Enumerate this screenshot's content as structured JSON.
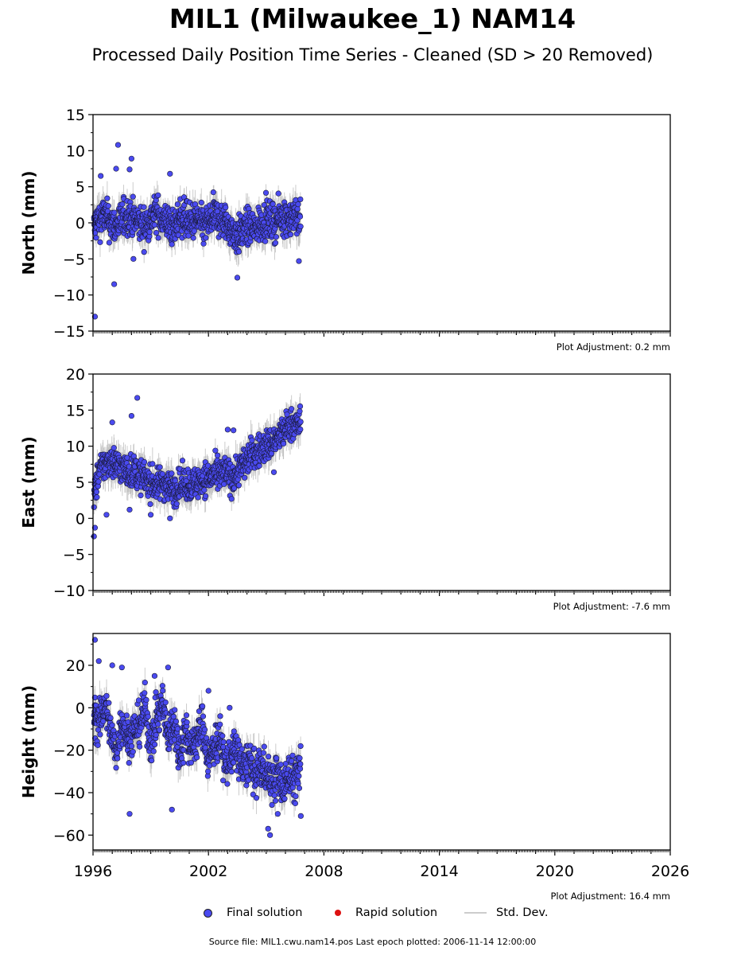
{
  "title": "MIL1 (Milwaukee_1) NAM14",
  "subtitle": "Processed Daily Position Time Series - Cleaned (SD > 20 Removed)",
  "legend": {
    "final_solution": "Final solution",
    "rapid_solution": "Rapid solution",
    "std_dev": "Std. Dev."
  },
  "source_line": "Source file: MIL1.cwu.nam14.pos  Last epoch plotted: 2006-11-14 12:00:00",
  "colors": {
    "final_solution": "#4a4af0",
    "rapid_solution": "#dd1111",
    "std_dev": "#bbbbbb"
  },
  "chart_data": [
    {
      "type": "scatter",
      "ylabel": "North (mm)",
      "ylim": [
        -15,
        15
      ],
      "yticks": [
        -15,
        -10,
        -5,
        0,
        5,
        10,
        15
      ],
      "xlim": [
        1996,
        2026
      ],
      "xticks": [
        1996,
        2002,
        2008,
        2014,
        2020,
        2026
      ],
      "adjustment": "Plot Adjustment: 0.2 mm",
      "series": [
        {
          "name": "Final solution",
          "x": [
            1996.05,
            1996.3,
            1996.6,
            1996.9,
            1997.2,
            1997.5,
            1997.8,
            1998.1,
            1998.4,
            1998.7,
            1999.0,
            1999.3,
            1999.6,
            1999.9,
            2000.2,
            2000.5,
            2000.8,
            2001.1,
            2001.4,
            2001.7,
            2002.0,
            2002.3,
            2002.6,
            2002.9,
            2003.2,
            2003.5,
            2003.8,
            2004.1,
            2004.4,
            2004.7,
            2005.0,
            2005.3,
            2005.6,
            2005.9,
            2006.2,
            2006.5,
            2006.8
          ],
          "y": [
            -0.5,
            0.5,
            1,
            0,
            -0.5,
            0.5,
            1,
            0.5,
            0,
            -0.5,
            0.5,
            1.5,
            0.5,
            0,
            -1,
            1,
            0.5,
            0,
            0.5,
            -0.5,
            0,
            1,
            0.5,
            0,
            -1,
            -2,
            -1,
            -0.5,
            -1,
            0,
            0.5,
            0,
            0.5,
            1,
            0.5,
            1,
            0.5
          ],
          "outliers_x": [
            1996.1,
            1996.4,
            1997.1,
            1997.2,
            1997.3,
            1997.9,
            1998.0,
            1998.1,
            2000.0,
            2003.5,
            2006.7
          ],
          "outliers_y": [
            -13,
            6.5,
            -8.5,
            7.5,
            10.8,
            7.4,
            8.9,
            -5,
            6.8,
            -7.6,
            -5.3
          ]
        }
      ]
    },
    {
      "type": "scatter",
      "ylabel": "East (mm)",
      "ylim": [
        -10,
        20
      ],
      "yticks": [
        -10,
        -5,
        0,
        5,
        10,
        15,
        20
      ],
      "xlim": [
        1996,
        2026
      ],
      "xticks": [
        1996,
        2002,
        2008,
        2014,
        2020,
        2026
      ],
      "adjustment": "Plot Adjustment: -7.6 mm",
      "series": [
        {
          "name": "Final solution",
          "x": [
            1996.05,
            1996.3,
            1996.6,
            1996.9,
            1997.2,
            1997.5,
            1997.8,
            1998.1,
            1998.4,
            1998.7,
            1999.0,
            1999.3,
            1999.6,
            1999.9,
            2000.2,
            2000.5,
            2000.8,
            2001.1,
            2001.4,
            2001.7,
            2002.0,
            2002.3,
            2002.6,
            2002.9,
            2003.2,
            2003.5,
            2003.8,
            2004.1,
            2004.4,
            2004.7,
            2005.0,
            2005.3,
            2005.6,
            2005.9,
            2006.2,
            2006.5,
            2006.8
          ],
          "y": [
            3,
            6.5,
            7.5,
            8,
            7.5,
            7,
            6.5,
            6.5,
            6,
            5.5,
            5,
            4.5,
            5,
            4.5,
            4,
            4.5,
            5,
            4.5,
            5,
            5.5,
            5.5,
            6,
            6,
            6.5,
            5.5,
            6.5,
            7.5,
            8.5,
            9,
            9.5,
            10,
            10.5,
            11,
            12,
            13,
            13,
            13
          ],
          "outliers_x": [
            1996.05,
            1996.1,
            1996.7,
            1997.0,
            1997.9,
            1998.0,
            1998.3,
            1999.0,
            2000.0,
            2003.0,
            2003.3,
            2005.4
          ],
          "outliers_y": [
            -2.5,
            -1.3,
            0.5,
            13.3,
            1.2,
            14.2,
            16.7,
            0.5,
            0,
            12.3,
            12.2,
            6.4
          ]
        }
      ]
    },
    {
      "type": "scatter",
      "ylabel": "Height (mm)",
      "ylim": [
        -67,
        35
      ],
      "yticks": [
        -60,
        -40,
        -20,
        0,
        20
      ],
      "xlim": [
        1996,
        2026
      ],
      "xticks": [
        1996,
        2002,
        2008,
        2014,
        2020,
        2026
      ],
      "adjustment": "Plot Adjustment: 16.4 mm",
      "series": [
        {
          "name": "Final solution",
          "x": [
            1996.05,
            1996.3,
            1996.6,
            1996.9,
            1997.2,
            1997.5,
            1997.8,
            1998.1,
            1998.4,
            1998.7,
            1999.0,
            1999.3,
            1999.6,
            1999.9,
            2000.2,
            2000.5,
            2000.8,
            2001.1,
            2001.4,
            2001.7,
            2002.0,
            2002.3,
            2002.6,
            2002.9,
            2003.2,
            2003.5,
            2003.8,
            2004.1,
            2004.4,
            2004.7,
            2005.0,
            2005.3,
            2005.6,
            2005.9,
            2006.2,
            2006.5,
            2006.8
          ],
          "y": [
            -2,
            -8,
            2,
            -10,
            -22,
            -5,
            -15,
            -12,
            -8,
            0,
            -18,
            -5,
            2,
            -14,
            -6,
            -22,
            -10,
            -20,
            -14,
            -8,
            -25,
            -18,
            -14,
            -28,
            -22,
            -20,
            -30,
            -24,
            -33,
            -28,
            -30,
            -35,
            -32,
            -38,
            -30,
            -35,
            -28
          ],
          "outliers_x": [
            1996.1,
            1996.3,
            1997.0,
            1997.5,
            1997.9,
            1999.2,
            1999.9,
            2000.1,
            2002.0,
            2003.1,
            2005.1,
            2005.2,
            2005.6,
            2006.8
          ],
          "outliers_y": [
            32,
            22,
            20,
            19,
            -50,
            15,
            19,
            -48,
            8,
            0,
            -57,
            -60,
            -50,
            -51
          ]
        }
      ]
    }
  ]
}
